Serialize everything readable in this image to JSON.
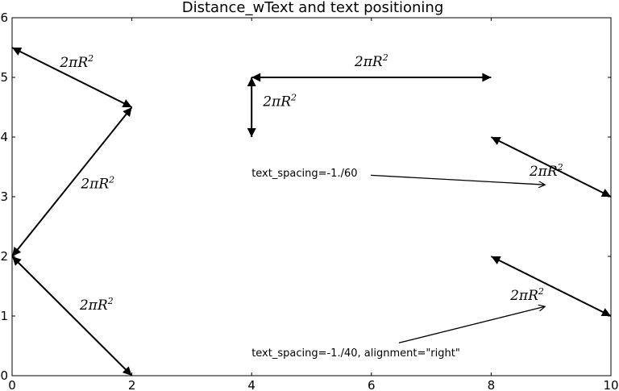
{
  "chart_data": {
    "type": "annotation-plot",
    "title": "Distance_wText and text positioning",
    "xlim": [
      0,
      10
    ],
    "ylim": [
      0,
      6
    ],
    "xticks": [
      "0",
      "2",
      "4",
      "6",
      "8",
      "10"
    ],
    "yticks": [
      "0",
      "1",
      "2",
      "3",
      "4",
      "5",
      "6"
    ],
    "grid": false,
    "distance_arrows": [
      {
        "from": [
          0,
          5.5
        ],
        "to": [
          2,
          4.5
        ],
        "label": "2πR",
        "sup": "2",
        "label_at": [
          1.08,
          5.26
        ]
      },
      {
        "from": [
          2,
          4.5
        ],
        "to": [
          0,
          2
        ],
        "label": "2πR",
        "sup": "2",
        "label_at": [
          1.43,
          3.22
        ]
      },
      {
        "from": [
          0,
          2
        ],
        "to": [
          2,
          0
        ],
        "label": "2πR",
        "sup": "2",
        "label_at": [
          1.41,
          1.19
        ]
      },
      {
        "from": [
          4,
          5
        ],
        "to": [
          8,
          5
        ],
        "label": "2πR",
        "sup": "2",
        "label_at": [
          6.0,
          5.27
        ]
      },
      {
        "from": [
          4,
          5
        ],
        "to": [
          4,
          4
        ],
        "label": "2πR",
        "sup": "2",
        "label_at": [
          4.47,
          4.6
        ]
      },
      {
        "from": [
          8,
          4
        ],
        "to": [
          10,
          3
        ],
        "label": "2πR",
        "sup": "2",
        "label_at": [
          8.92,
          3.43
        ]
      },
      {
        "from": [
          8,
          2
        ],
        "to": [
          10,
          1
        ],
        "label": "2πR",
        "sup": "2",
        "label_at": [
          8.6,
          1.35
        ]
      }
    ],
    "text_annotations": [
      {
        "text": "text_spacing=-1./60",
        "text_at": [
          4.0,
          3.39
        ],
        "arrow_from": [
          5.99,
          3.36
        ],
        "arrow_to": [
          8.9,
          3.2
        ]
      },
      {
        "text": "text_spacing=-1./40, alignment=\"right\"",
        "text_at": [
          4.0,
          0.38
        ],
        "arrow_from": [
          6.46,
          0.55
        ],
        "arrow_to": [
          8.9,
          1.16
        ]
      }
    ]
  }
}
